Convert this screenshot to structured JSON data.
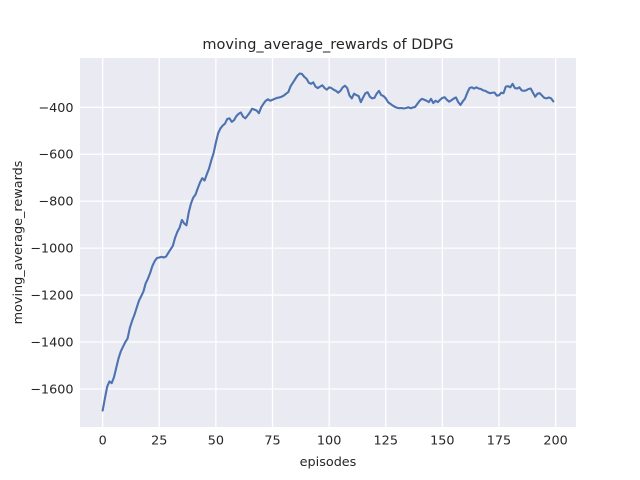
{
  "figure": {
    "background_color": "#ffffff",
    "axes_background_color": "#eaeaf2",
    "grid_color": "#ffffff",
    "text_color": "#262626",
    "line_color": "#4c72b0"
  },
  "chart_data": {
    "type": "line",
    "title": "moving_average_rewards of DDPG",
    "xlabel": "episodes",
    "ylabel": "moving_average_rewards",
    "legend": "none",
    "grid": true,
    "xlim": [
      -10,
      209
    ],
    "ylim": [
      -1762,
      -190
    ],
    "x_ticks": [
      0,
      25,
      50,
      75,
      100,
      125,
      150,
      175,
      200
    ],
    "y_ticks": [
      -400,
      -600,
      -800,
      -1000,
      -1200,
      -1400,
      -1600
    ],
    "series": [
      {
        "name": "moving_average_rewards",
        "color": "#4c72b0",
        "x": [
          0,
          1,
          2,
          3,
          4,
          5,
          6,
          7,
          8,
          9,
          10,
          11,
          12,
          13,
          14,
          15,
          16,
          17,
          18,
          19,
          20,
          21,
          22,
          23,
          24,
          25,
          26,
          27,
          28,
          29,
          30,
          31,
          32,
          33,
          34,
          35,
          36,
          37,
          38,
          39,
          40,
          41,
          42,
          43,
          44,
          45,
          46,
          47,
          48,
          49,
          50,
          51,
          52,
          53,
          54,
          55,
          56,
          57,
          58,
          59,
          60,
          61,
          62,
          63,
          64,
          65,
          66,
          67,
          68,
          69,
          70,
          71,
          72,
          73,
          74,
          75,
          76,
          77,
          78,
          79,
          80,
          81,
          82,
          83,
          84,
          85,
          86,
          87,
          88,
          89,
          90,
          91,
          92,
          93,
          94,
          95,
          96,
          97,
          98,
          99,
          100,
          101,
          102,
          103,
          104,
          105,
          106,
          107,
          108,
          109,
          110,
          111,
          112,
          113,
          114,
          115,
          116,
          117,
          118,
          119,
          120,
          121,
          122,
          123,
          124,
          125,
          126,
          127,
          128,
          129,
          130,
          131,
          132,
          133,
          134,
          135,
          136,
          137,
          138,
          139,
          140,
          141,
          142,
          143,
          144,
          145,
          146,
          147,
          148,
          149,
          150,
          151,
          152,
          153,
          154,
          155,
          156,
          157,
          158,
          159,
          160,
          161,
          162,
          163,
          164,
          165,
          166,
          167,
          168,
          169,
          170,
          171,
          172,
          173,
          174,
          175,
          176,
          177,
          178,
          179,
          180,
          181,
          182,
          183,
          184,
          185,
          186,
          187,
          188,
          189,
          190,
          191,
          192,
          193,
          194,
          195,
          196,
          197,
          198,
          199
        ],
        "y": [
          -1692,
          -1640,
          -1590,
          -1568,
          -1575,
          -1550,
          -1510,
          -1470,
          -1440,
          -1420,
          -1400,
          -1385,
          -1340,
          -1310,
          -1285,
          -1255,
          -1225,
          -1205,
          -1185,
          -1150,
          -1130,
          -1105,
          -1075,
          -1055,
          -1042,
          -1040,
          -1037,
          -1040,
          -1036,
          -1020,
          -1005,
          -990,
          -955,
          -930,
          -912,
          -880,
          -895,
          -903,
          -848,
          -810,
          -785,
          -772,
          -745,
          -720,
          -702,
          -712,
          -685,
          -660,
          -625,
          -595,
          -550,
          -510,
          -490,
          -478,
          -470,
          -450,
          -447,
          -462,
          -455,
          -438,
          -428,
          -422,
          -440,
          -447,
          -435,
          -422,
          -406,
          -410,
          -414,
          -425,
          -400,
          -385,
          -372,
          -366,
          -372,
          -368,
          -364,
          -360,
          -358,
          -355,
          -350,
          -342,
          -335,
          -310,
          -295,
          -280,
          -265,
          -256,
          -258,
          -270,
          -278,
          -295,
          -300,
          -294,
          -312,
          -318,
          -312,
          -306,
          -318,
          -325,
          -315,
          -318,
          -325,
          -330,
          -338,
          -330,
          -315,
          -308,
          -318,
          -350,
          -362,
          -342,
          -348,
          -352,
          -378,
          -358,
          -340,
          -336,
          -355,
          -362,
          -360,
          -342,
          -330,
          -348,
          -352,
          -362,
          -378,
          -385,
          -392,
          -398,
          -402,
          -404,
          -403,
          -405,
          -403,
          -400,
          -404,
          -401,
          -398,
          -385,
          -372,
          -364,
          -368,
          -372,
          -378,
          -364,
          -382,
          -372,
          -378,
          -368,
          -360,
          -357,
          -368,
          -376,
          -370,
          -363,
          -358,
          -378,
          -390,
          -375,
          -363,
          -338,
          -318,
          -315,
          -320,
          -315,
          -320,
          -322,
          -328,
          -330,
          -336,
          -340,
          -338,
          -337,
          -350,
          -349,
          -338,
          -340,
          -312,
          -310,
          -315,
          -300,
          -318,
          -320,
          -315,
          -328,
          -330,
          -328,
          -322,
          -320,
          -338,
          -355,
          -342,
          -340,
          -350,
          -360,
          -362,
          -358,
          -362,
          -375
        ]
      }
    ]
  }
}
